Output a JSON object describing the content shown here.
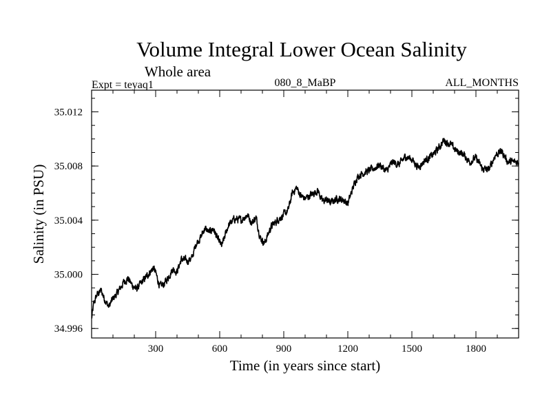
{
  "chart_data": {
    "type": "line",
    "title": "Volume Integral Lower Ocean Salinity",
    "subtitle": "Whole area",
    "left_label": "Expt = teyaq1",
    "center_label": "080_8_MaBP",
    "right_label": "ALL_MONTHS",
    "xlabel": "Time (in years since start)",
    "ylabel": "Salinity (in PSU)",
    "xlim": [
      0,
      2000
    ],
    "ylim": [
      34.9953,
      35.0136
    ],
    "x_ticks": [
      300,
      600,
      900,
      1200,
      1500,
      1800
    ],
    "x_tick_labels": [
      "300",
      "600",
      "900",
      "1200",
      "1500",
      "1800"
    ],
    "x_minor_step": 100,
    "y_ticks": [
      34.996,
      35.0,
      35.004,
      35.008,
      35.012
    ],
    "y_tick_labels": [
      "34.996",
      "35.000",
      "35.004",
      "35.008",
      "35.012"
    ],
    "y_minor_step": 0.001,
    "line_color": "#000000",
    "series": [
      {
        "name": "Volume integral lower ocean salinity",
        "x": [
          0,
          10,
          25,
          45,
          60,
          80,
          100,
          120,
          150,
          170,
          190,
          210,
          240,
          270,
          290,
          300,
          320,
          340,
          360,
          380,
          400,
          420,
          450,
          470,
          490,
          510,
          530,
          550,
          570,
          590,
          610,
          640,
          670,
          700,
          730,
          750,
          770,
          790,
          810,
          840,
          870,
          900,
          920,
          940,
          960,
          980,
          1000,
          1030,
          1060,
          1080,
          1100,
          1120,
          1150,
          1180,
          1200,
          1220,
          1240,
          1260,
          1290,
          1320,
          1350,
          1380,
          1410,
          1440,
          1470,
          1500,
          1530,
          1560,
          1590,
          1620,
          1650,
          1680,
          1710,
          1740,
          1770,
          1800,
          1830,
          1860,
          1890,
          1920,
          1950,
          2000
        ],
        "y": [
          34.9967,
          34.9978,
          34.9985,
          34.9988,
          34.9982,
          34.9976,
          34.9982,
          34.9986,
          34.9994,
          34.9997,
          34.9992,
          34.9989,
          34.9995,
          35.0001,
          35.0005,
          35.0001,
          34.9991,
          34.9993,
          34.9998,
          35.0004,
          35.0002,
          35.0011,
          35.001,
          35.0012,
          35.0023,
          35.0027,
          35.0034,
          35.0031,
          35.0034,
          35.0026,
          35.0021,
          35.0036,
          35.0041,
          35.004,
          35.0044,
          35.0038,
          35.0042,
          35.0027,
          35.0023,
          35.0035,
          35.004,
          35.0044,
          35.0047,
          35.006,
          35.0064,
          35.0058,
          35.0056,
          35.0059,
          35.0062,
          35.0054,
          35.0055,
          35.0053,
          35.0056,
          35.0055,
          35.0052,
          35.0062,
          35.0071,
          35.0074,
          35.0076,
          35.0078,
          35.0081,
          35.0076,
          35.0083,
          35.0081,
          35.0087,
          35.0085,
          35.0079,
          35.0084,
          35.0087,
          35.0092,
          35.0099,
          35.0096,
          35.0091,
          35.0089,
          35.0083,
          35.0086,
          35.0078,
          35.0077,
          35.0088,
          35.0091,
          35.0083,
          35.0083
        ]
      }
    ]
  }
}
